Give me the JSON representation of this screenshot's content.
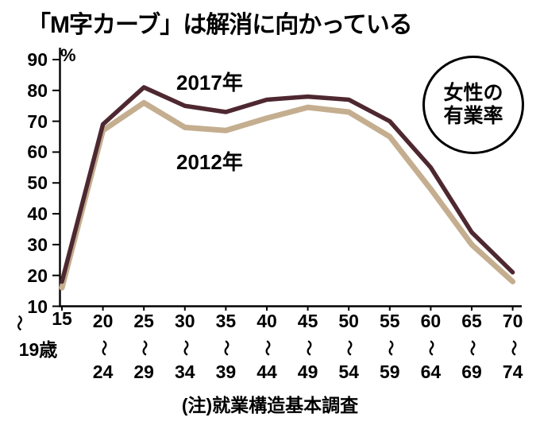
{
  "title": "「M字カーブ」は解消に向かっている",
  "badge": {
    "line1": "女性の",
    "line2": "有業率"
  },
  "note": "(注)就業構造基本調査",
  "y_axis": {
    "unit": "%",
    "ticks": [
      90,
      80,
      70,
      60,
      50,
      40,
      30,
      20,
      10
    ]
  },
  "x_axis": {
    "groups": [
      {
        "top": "15",
        "tilde": "〜",
        "bottom": "19歳"
      },
      {
        "top": "20",
        "tilde": "〜",
        "bottom": "24"
      },
      {
        "top": "25",
        "tilde": "〜",
        "bottom": "29"
      },
      {
        "top": "30",
        "tilde": "〜",
        "bottom": "34"
      },
      {
        "top": "35",
        "tilde": "〜",
        "bottom": "39"
      },
      {
        "top": "40",
        "tilde": "〜",
        "bottom": "44"
      },
      {
        "top": "45",
        "tilde": "〜",
        "bottom": "49"
      },
      {
        "top": "50",
        "tilde": "〜",
        "bottom": "54"
      },
      {
        "top": "55",
        "tilde": "〜",
        "bottom": "59"
      },
      {
        "top": "60",
        "tilde": "〜",
        "bottom": "64"
      },
      {
        "top": "65",
        "tilde": "〜",
        "bottom": "69"
      },
      {
        "top": "70",
        "tilde": "〜",
        "bottom": "74"
      }
    ]
  },
  "chart_data": {
    "type": "line",
    "title": "「M字カーブ」は解消に向かっている",
    "ylabel": "%",
    "ylim": [
      10,
      90
    ],
    "grid": false,
    "legend_badge": "女性の有業率",
    "source_note": "(注)就業構造基本調査",
    "categories": [
      "15〜19歳",
      "20〜24",
      "25〜29",
      "30〜34",
      "35〜39",
      "40〜44",
      "45〜49",
      "50〜54",
      "55〜59",
      "60〜64",
      "65〜69",
      "70〜74"
    ],
    "series": [
      {
        "name": "2017年",
        "color": "#4e2830",
        "values": [
          18,
          69,
          81,
          75,
          73,
          77,
          78,
          77,
          70,
          55,
          34,
          21
        ]
      },
      {
        "name": "2012年",
        "color": "#c4ae8f",
        "values": [
          16,
          67,
          76,
          68,
          67,
          71,
          74.5,
          73,
          65,
          48,
          30,
          18
        ]
      }
    ]
  }
}
